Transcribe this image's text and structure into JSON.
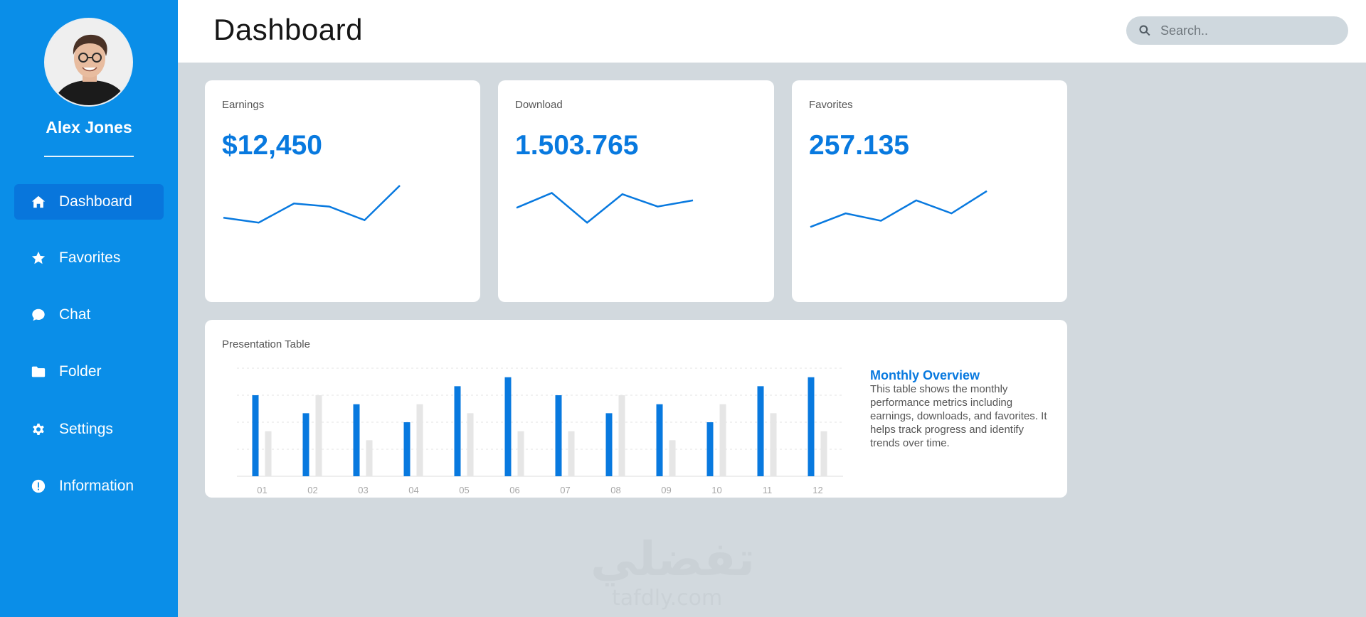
{
  "user": {
    "name": "Alex Jones",
    "avatar_icon": "user-avatar"
  },
  "sidebar": {
    "items": [
      {
        "label": "Dashboard",
        "icon": "home-icon",
        "active": true
      },
      {
        "label": "Favorites",
        "icon": "star-icon",
        "active": false
      },
      {
        "label": "Chat",
        "icon": "chat-icon",
        "active": false
      },
      {
        "label": "Folder",
        "icon": "folder-icon",
        "active": false
      },
      {
        "label": "Settings",
        "icon": "gear-icon",
        "active": false
      },
      {
        "label": "Information",
        "icon": "info-icon",
        "active": false
      }
    ]
  },
  "header": {
    "title": "Dashboard",
    "search_placeholder": "Search.."
  },
  "cards": [
    {
      "label": "Earnings",
      "value": "$12,450"
    },
    {
      "label": "Download",
      "value": "1.503.765"
    },
    {
      "label": "Favorites",
      "value": "257.135"
    }
  ],
  "presentation": {
    "label": "Presentation Table",
    "overview_title": "Monthly Overview",
    "overview_text": "This table shows the monthly performance metrics including earnings, downloads, and favorites. It helps track progress and identify trends over time."
  },
  "watermark": {
    "text": "تفضلي",
    "sub": "tafdly.com"
  },
  "colors": {
    "accent": "#0879df",
    "sidebar": "#0a8ee8",
    "background": "#d2d9de",
    "secondary_bar": "#e6e6e6"
  },
  "chart_data": [
    {
      "type": "line",
      "label": "Earnings",
      "values": [
        48,
        40,
        71,
        66,
        44,
        100
      ]
    },
    {
      "type": "line",
      "label": "Download",
      "values": [
        64,
        88,
        40,
        86,
        66,
        76
      ]
    },
    {
      "type": "line",
      "label": "Favorites",
      "values": [
        33,
        55,
        43,
        76,
        55,
        91
      ]
    },
    {
      "type": "bar",
      "title": "Presentation Table",
      "categories": [
        "01",
        "02",
        "03",
        "04",
        "05",
        "06",
        "07",
        "08",
        "09",
        "10",
        "11",
        "12"
      ],
      "series": [
        {
          "color": "#0879df",
          "values": [
            90,
            70,
            80,
            60,
            100,
            110,
            90,
            70,
            80,
            60,
            100,
            110
          ]
        },
        {
          "color": "#e6e6e6",
          "values": [
            50,
            90,
            40,
            80,
            70,
            50,
            50,
            90,
            40,
            80,
            70,
            50
          ]
        }
      ],
      "ylim": [
        0,
        120
      ],
      "grid": true
    }
  ]
}
